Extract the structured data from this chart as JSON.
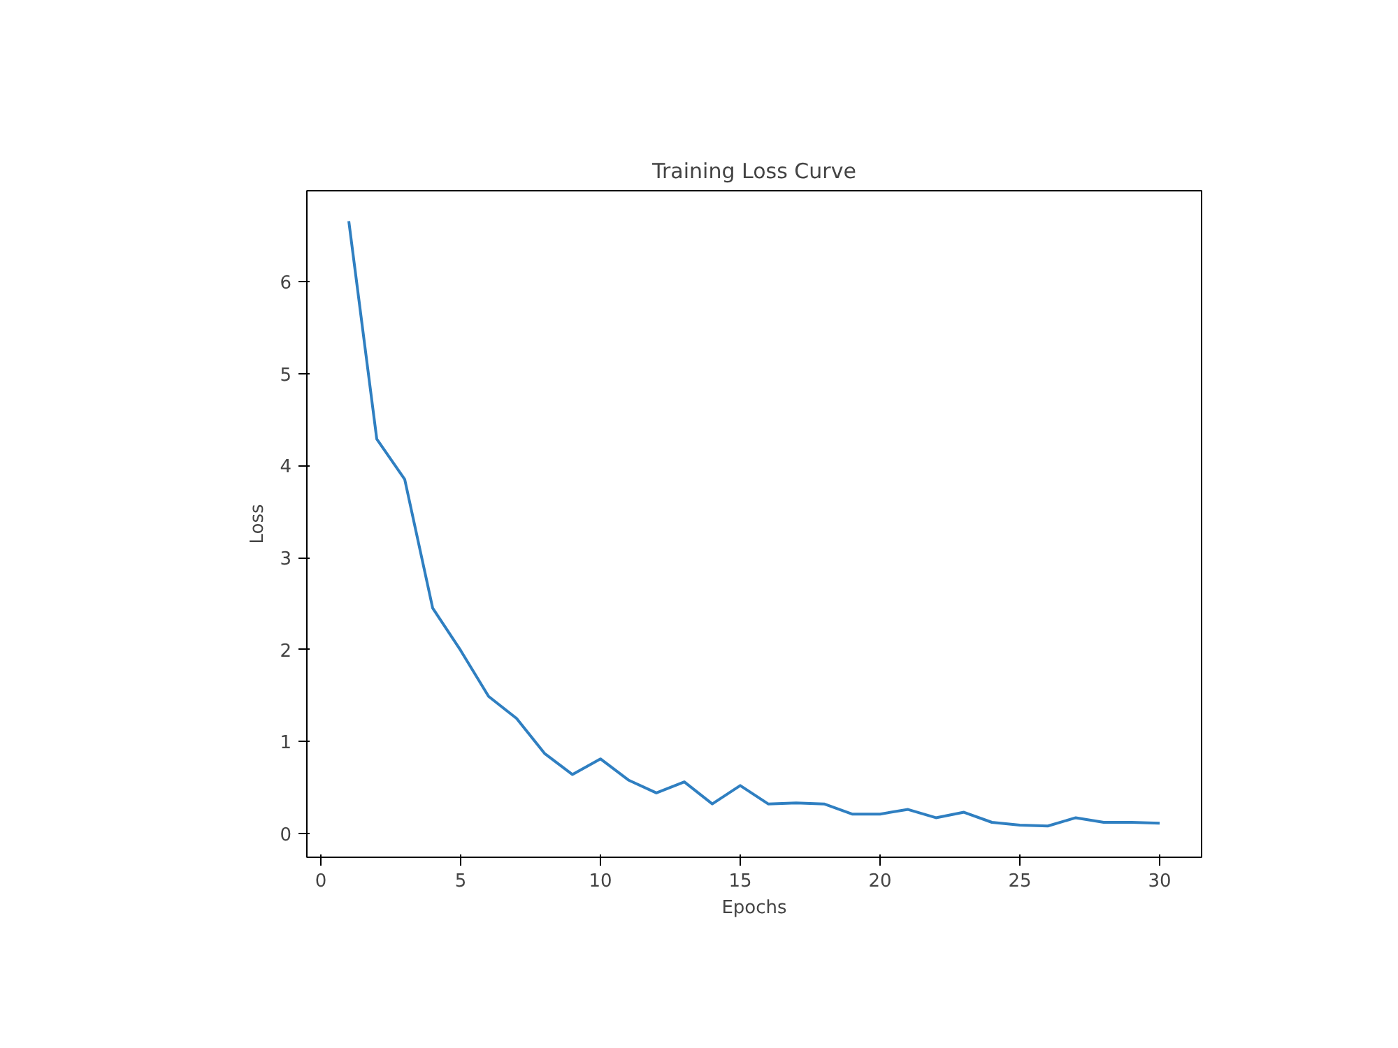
{
  "chart_data": {
    "type": "line",
    "title": "Training Loss Curve",
    "xlabel": "Epochs",
    "ylabel": "Loss",
    "x": [
      1,
      2,
      3,
      4,
      5,
      6,
      7,
      8,
      9,
      10,
      11,
      12,
      13,
      14,
      15,
      16,
      17,
      18,
      19,
      20,
      21,
      22,
      23,
      24,
      25,
      26,
      27,
      28,
      29,
      30
    ],
    "series": [
      {
        "color": "#2f7fc1",
        "values": [
          6.66,
          4.29,
          3.85,
          2.45,
          1.99,
          1.49,
          1.25,
          0.87,
          0.64,
          0.81,
          0.58,
          0.44,
          0.56,
          0.32,
          0.52,
          0.32,
          0.33,
          0.32,
          0.21,
          0.21,
          0.26,
          0.17,
          0.23,
          0.12,
          0.09,
          0.08,
          0.17,
          0.12,
          0.12,
          0.11
        ]
      }
    ],
    "xlim": [
      -0.5,
      31.5
    ],
    "ylim": [
      -0.26,
      6.99
    ],
    "xticks": [
      0,
      5,
      10,
      15,
      20,
      25,
      30
    ],
    "yticks": [
      0,
      1,
      2,
      3,
      4,
      5,
      6
    ],
    "grid": false,
    "line_style": "solid",
    "marker": "none"
  }
}
